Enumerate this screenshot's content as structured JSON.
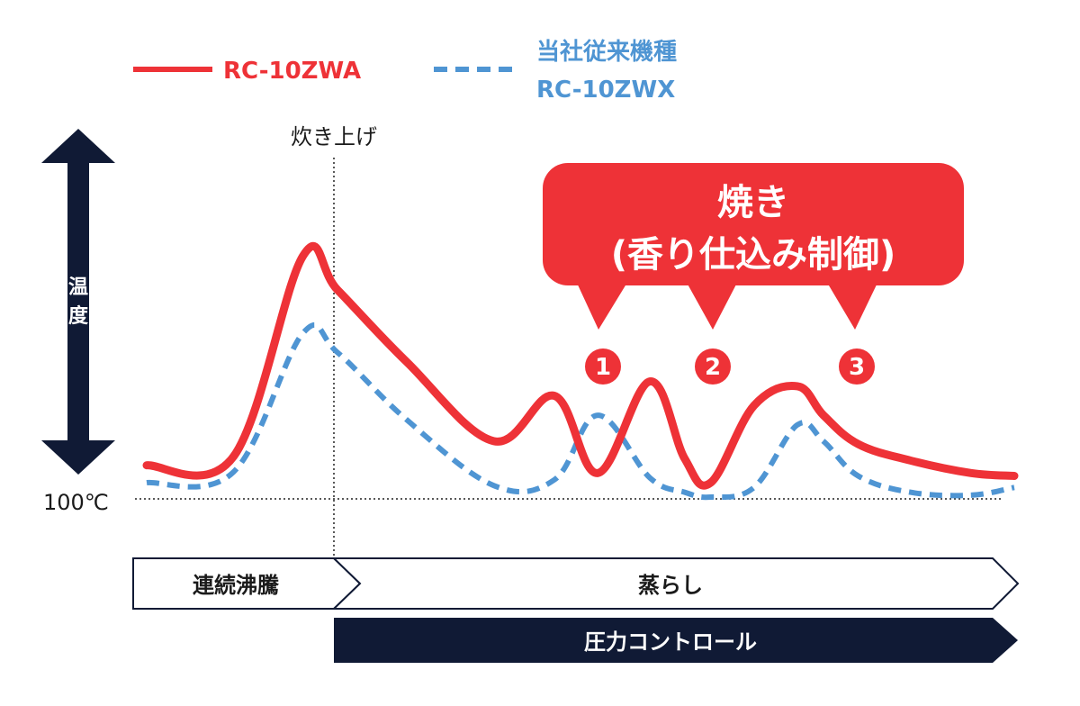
{
  "colors": {
    "new_model": "#ee3237",
    "old_model": "#4f95d3",
    "navy": "#101a35",
    "text": "#1a1a1a"
  },
  "legend": {
    "new_model": "RC-10ZWA",
    "old_model_line1": "当社従来機種",
    "old_model_line2": "RC-10ZWX"
  },
  "axis": {
    "y_label": "温度",
    "baseline_label": "100℃",
    "cook_marker_label": "炊き上げ"
  },
  "callout": {
    "line1": "焼き",
    "line2": "(香り仕込み制御)",
    "badges": [
      "1",
      "2",
      "3"
    ]
  },
  "phases": {
    "boil": "連続沸騰",
    "steam": "蒸らし",
    "pressure": "圧力コントロール"
  },
  "chart_data": {
    "type": "line",
    "x": [
      0,
      10,
      18,
      22,
      30,
      40,
      47,
      52,
      58,
      62,
      65,
      70,
      75,
      78,
      82,
      88,
      95,
      100
    ],
    "y_axis_note": "relative temperature above 100℃ (no numeric scale shown)",
    "series": [
      {
        "name": "RC-10ZWA",
        "style": "solid",
        "values": [
          0.33,
          0.42,
          2.5,
          2.15,
          1.4,
          0.58,
          1.05,
          0.25,
          1.2,
          0.4,
          0.15,
          0.95,
          1.15,
          0.85,
          0.55,
          0.38,
          0.25,
          0.22
        ]
      },
      {
        "name": "当社従来機種 RC-10ZWX",
        "style": "dashed",
        "values": [
          0.15,
          0.26,
          1.7,
          1.5,
          0.8,
          0.12,
          0.18,
          0.85,
          0.2,
          0.05,
          0.0,
          0.1,
          0.75,
          0.58,
          0.22,
          0.05,
          0.02,
          0.1
        ]
      }
    ]
  }
}
